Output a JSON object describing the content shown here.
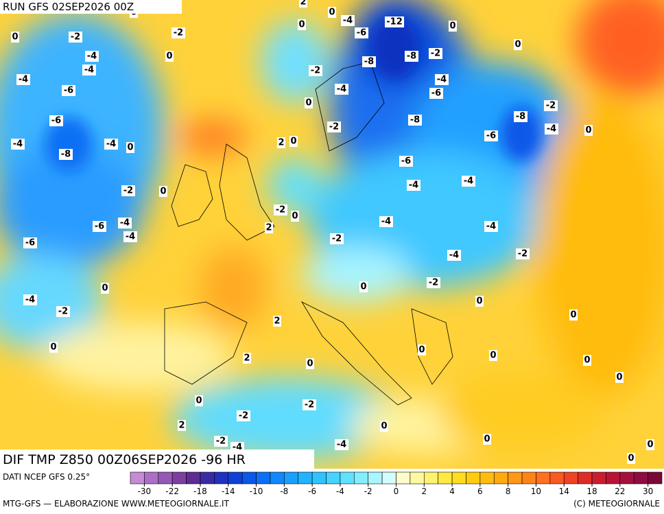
{
  "header": {
    "run": "RUN GFS 02SEP2026 00Z"
  },
  "map": {
    "caption": "DIF TMP Z850 00Z06SEP2026 -96 HR",
    "base_color": "#ffd23a",
    "contour_labels": [
      -12,
      -6,
      -4,
      0,
      0,
      0,
      0,
      -2,
      -8,
      -8,
      -2,
      -4,
      -4,
      -6,
      0,
      -8,
      -8,
      -2,
      -4,
      0,
      -6,
      -2,
      2,
      0,
      -6,
      -4,
      -4,
      -4,
      -4,
      -2,
      -2,
      2,
      0,
      -4,
      -2,
      -2,
      0,
      0,
      0,
      2,
      2,
      0,
      0,
      0,
      0,
      0,
      0,
      -2,
      -2,
      2,
      0,
      -2,
      -4,
      -4,
      0,
      0,
      0,
      0,
      -2,
      -2,
      -4,
      -4,
      0,
      -4,
      -6,
      -6,
      -4,
      -4,
      -8,
      0,
      -2,
      0,
      -6,
      -4,
      -4,
      -6,
      0,
      -4,
      -2,
      0,
      2,
      0
    ]
  },
  "legend": {
    "source": "DATI NCEP GFS 0.25°",
    "credit": "MTG-GFS — ELABORAZIONE WWW.METEOGIORNALE.IT",
    "copyright": "(C) METEOGIORNALE",
    "colors": [
      "#c58bd3",
      "#ad6fc6",
      "#9658b6",
      "#7c40a0",
      "#5e2c92",
      "#3c2aa4",
      "#2030c0",
      "#1040d8",
      "#0a58e8",
      "#0a70f4",
      "#1088fc",
      "#18a0ff",
      "#22b4ff",
      "#30c4ff",
      "#44d4ff",
      "#60e2ff",
      "#84eeff",
      "#aaf6ff",
      "#d4fdff",
      "#fffccc",
      "#fff8a0",
      "#fff270",
      "#ffea40",
      "#ffdc20",
      "#ffcc10",
      "#ffbc10",
      "#ffaa10",
      "#ff9818",
      "#ff8418",
      "#ff7020",
      "#f85a20",
      "#ee4424",
      "#e02c28",
      "#cc1c30",
      "#b81438",
      "#a4103e",
      "#900c40",
      "#7a0838"
    ],
    "ticks": [
      -30,
      -22,
      -18,
      -14,
      -10,
      -8,
      -6,
      -4,
      -2,
      0,
      2,
      4,
      6,
      8,
      10,
      14,
      18,
      22,
      30
    ]
  }
}
